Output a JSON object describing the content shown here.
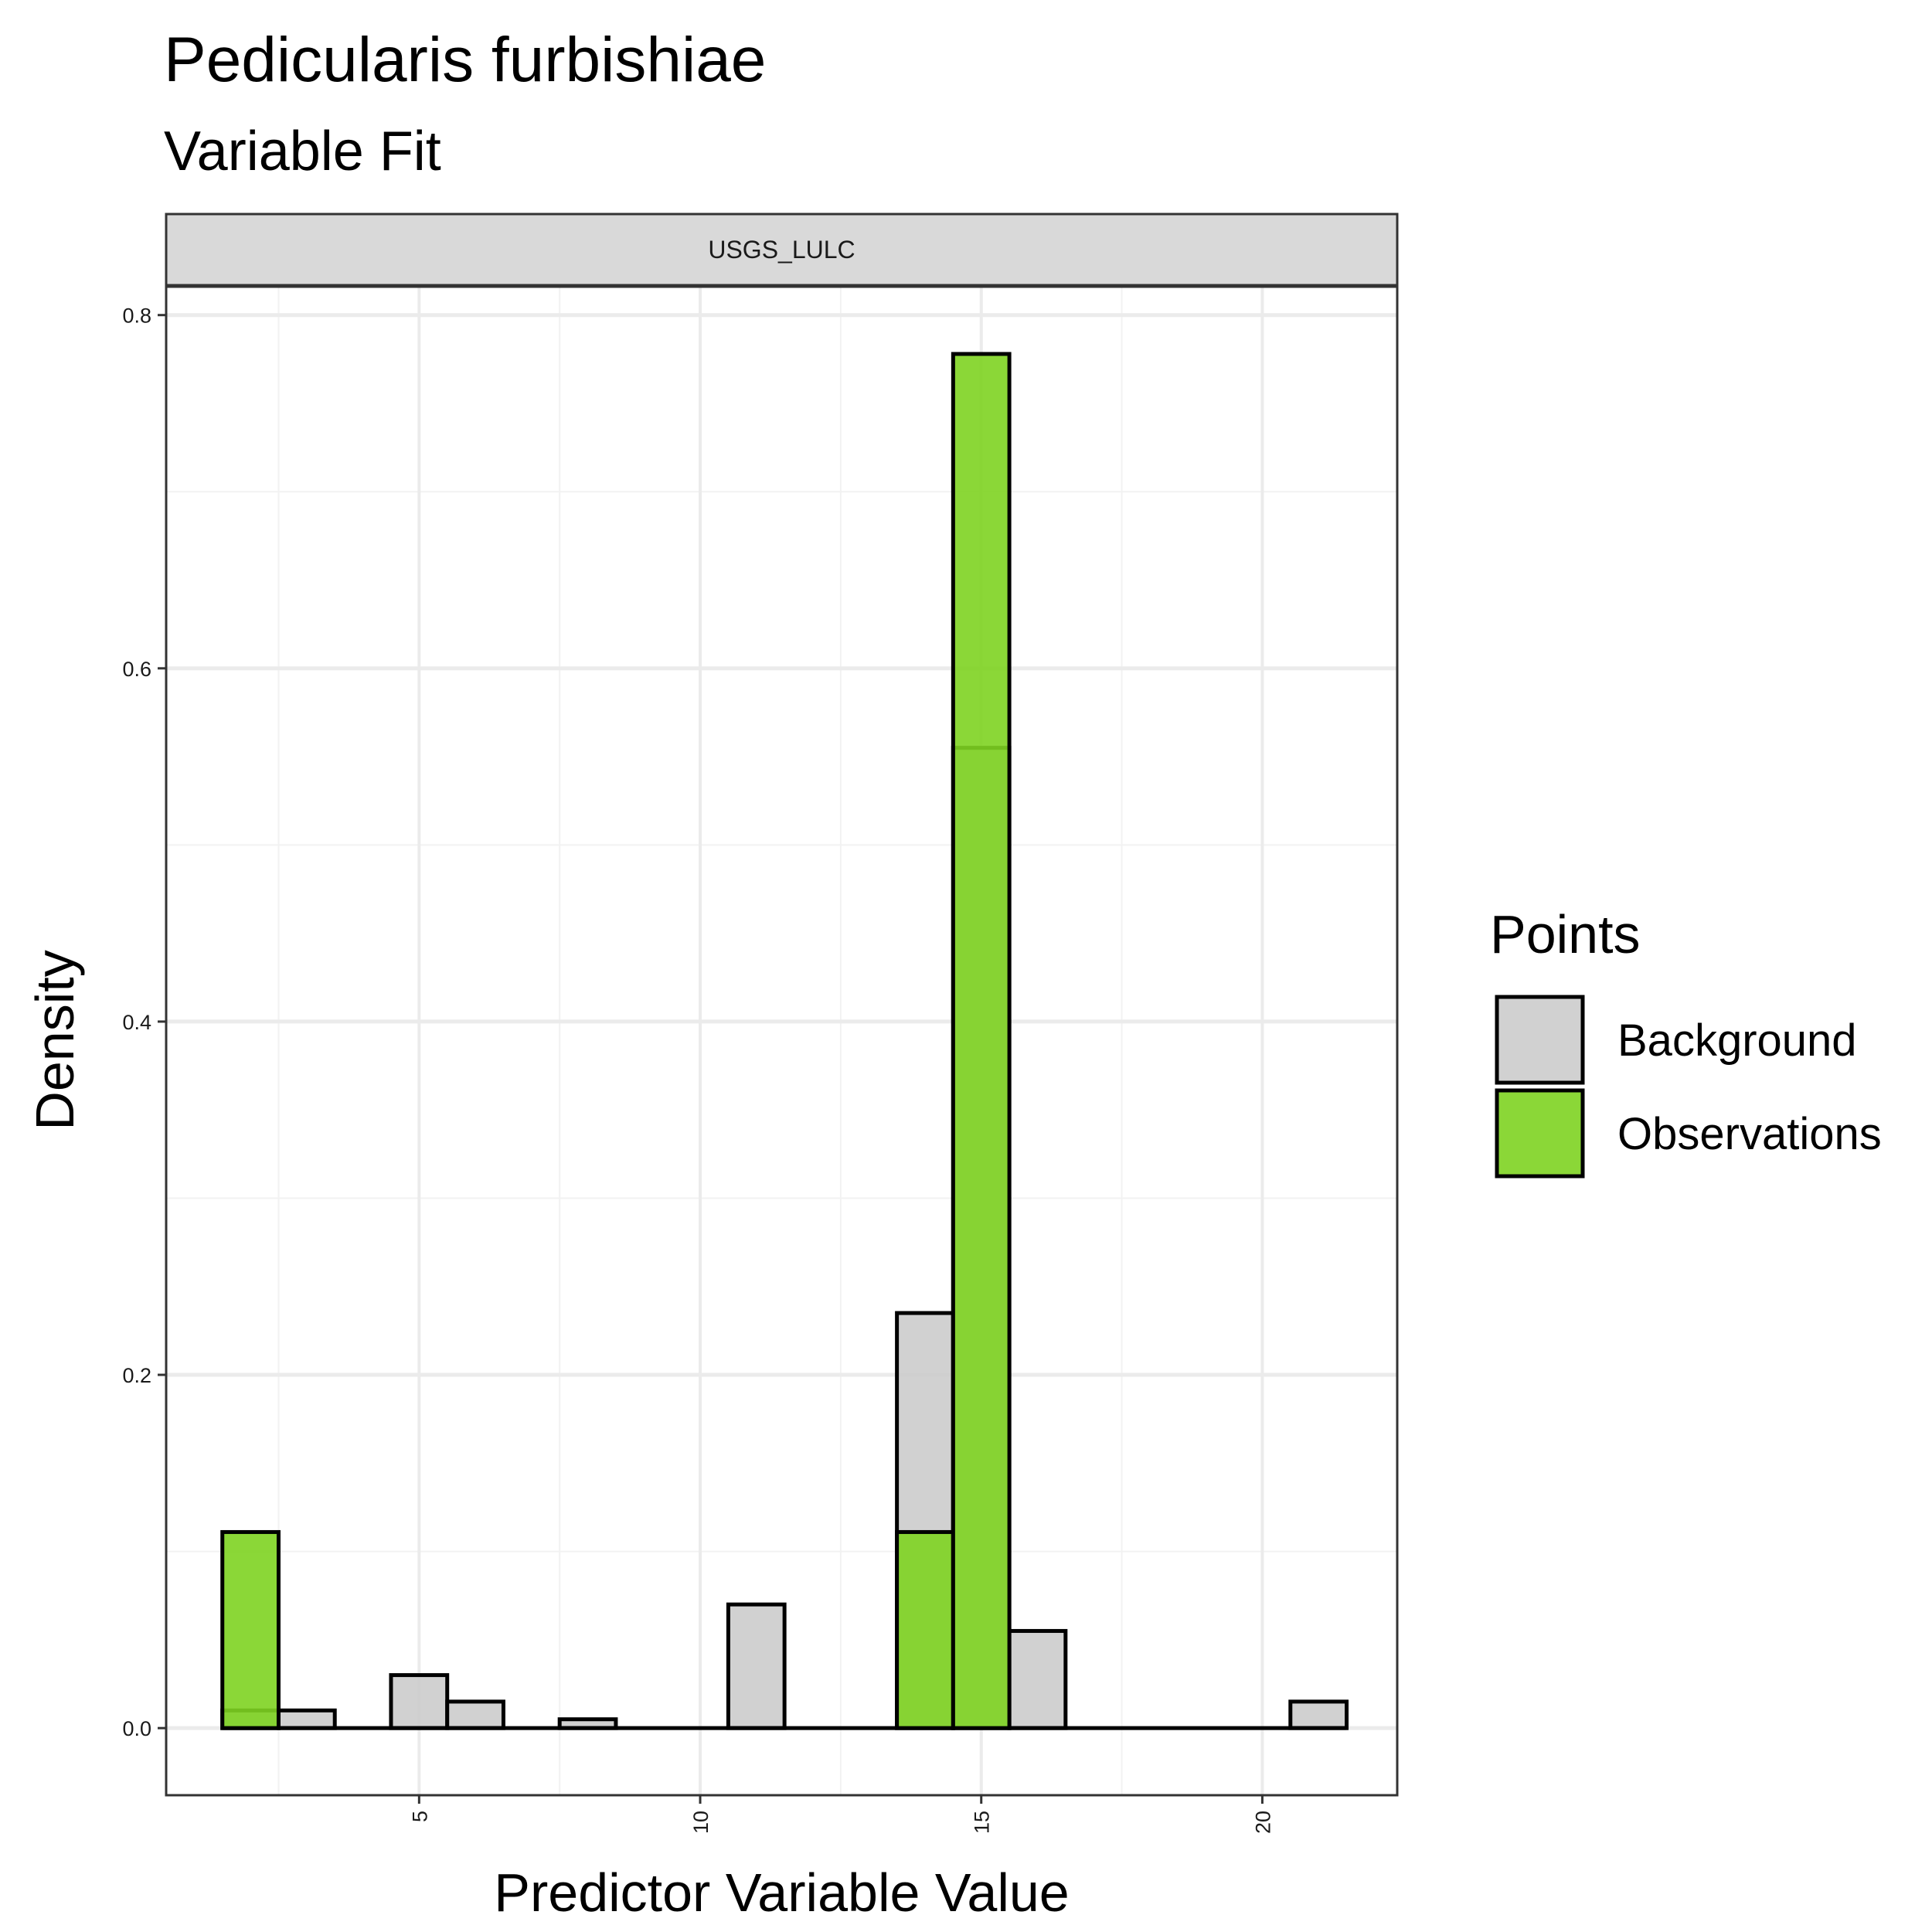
{
  "chart_data": {
    "type": "bar",
    "title": "Pedicularis furbishiae",
    "subtitle": "Variable Fit",
    "facet_label": "USGS_LULC",
    "xlabel": "Predictor Variable Value",
    "ylabel": "Density",
    "xlim": [
      0.5,
      22.4
    ],
    "ylim": [
      -0.038,
      0.8165
    ],
    "x_ticks": [
      5,
      10,
      15,
      20
    ],
    "y_ticks": [
      0.0,
      0.2,
      0.4,
      0.6,
      0.8
    ],
    "y_tick_labels": [
      "0.0",
      "0.2",
      "0.4",
      "0.6",
      "0.8"
    ],
    "bin_width": 1,
    "grid": true,
    "legend_position": "right",
    "legend_title": "Points",
    "series": [
      {
        "name": "Background",
        "color": "#cccccc",
        "bins": [
          {
            "x": 2,
            "y": 0.01
          },
          {
            "x": 3,
            "y": 0.01
          },
          {
            "x": 4,
            "y": 0.0
          },
          {
            "x": 5,
            "y": 0.03
          },
          {
            "x": 6,
            "y": 0.015
          },
          {
            "x": 7,
            "y": 0.0
          },
          {
            "x": 8,
            "y": 0.005
          },
          {
            "x": 9,
            "y": 0.0
          },
          {
            "x": 10,
            "y": 0.0
          },
          {
            "x": 11,
            "y": 0.07
          },
          {
            "x": 12,
            "y": 0.0
          },
          {
            "x": 13,
            "y": 0.0
          },
          {
            "x": 14,
            "y": 0.235
          },
          {
            "x": 15,
            "y": 0.555
          },
          {
            "x": 16,
            "y": 0.055
          },
          {
            "x": 17,
            "y": 0.0
          },
          {
            "x": 18,
            "y": 0.0
          },
          {
            "x": 19,
            "y": 0.0
          },
          {
            "x": 20,
            "y": 0.0
          },
          {
            "x": 21,
            "y": 0.015
          }
        ]
      },
      {
        "name": "Observations",
        "color": "#7ed321",
        "bins": [
          {
            "x": 2,
            "y": 0.111
          },
          {
            "x": 14,
            "y": 0.111
          },
          {
            "x": 15,
            "y": 0.778
          }
        ]
      }
    ]
  }
}
